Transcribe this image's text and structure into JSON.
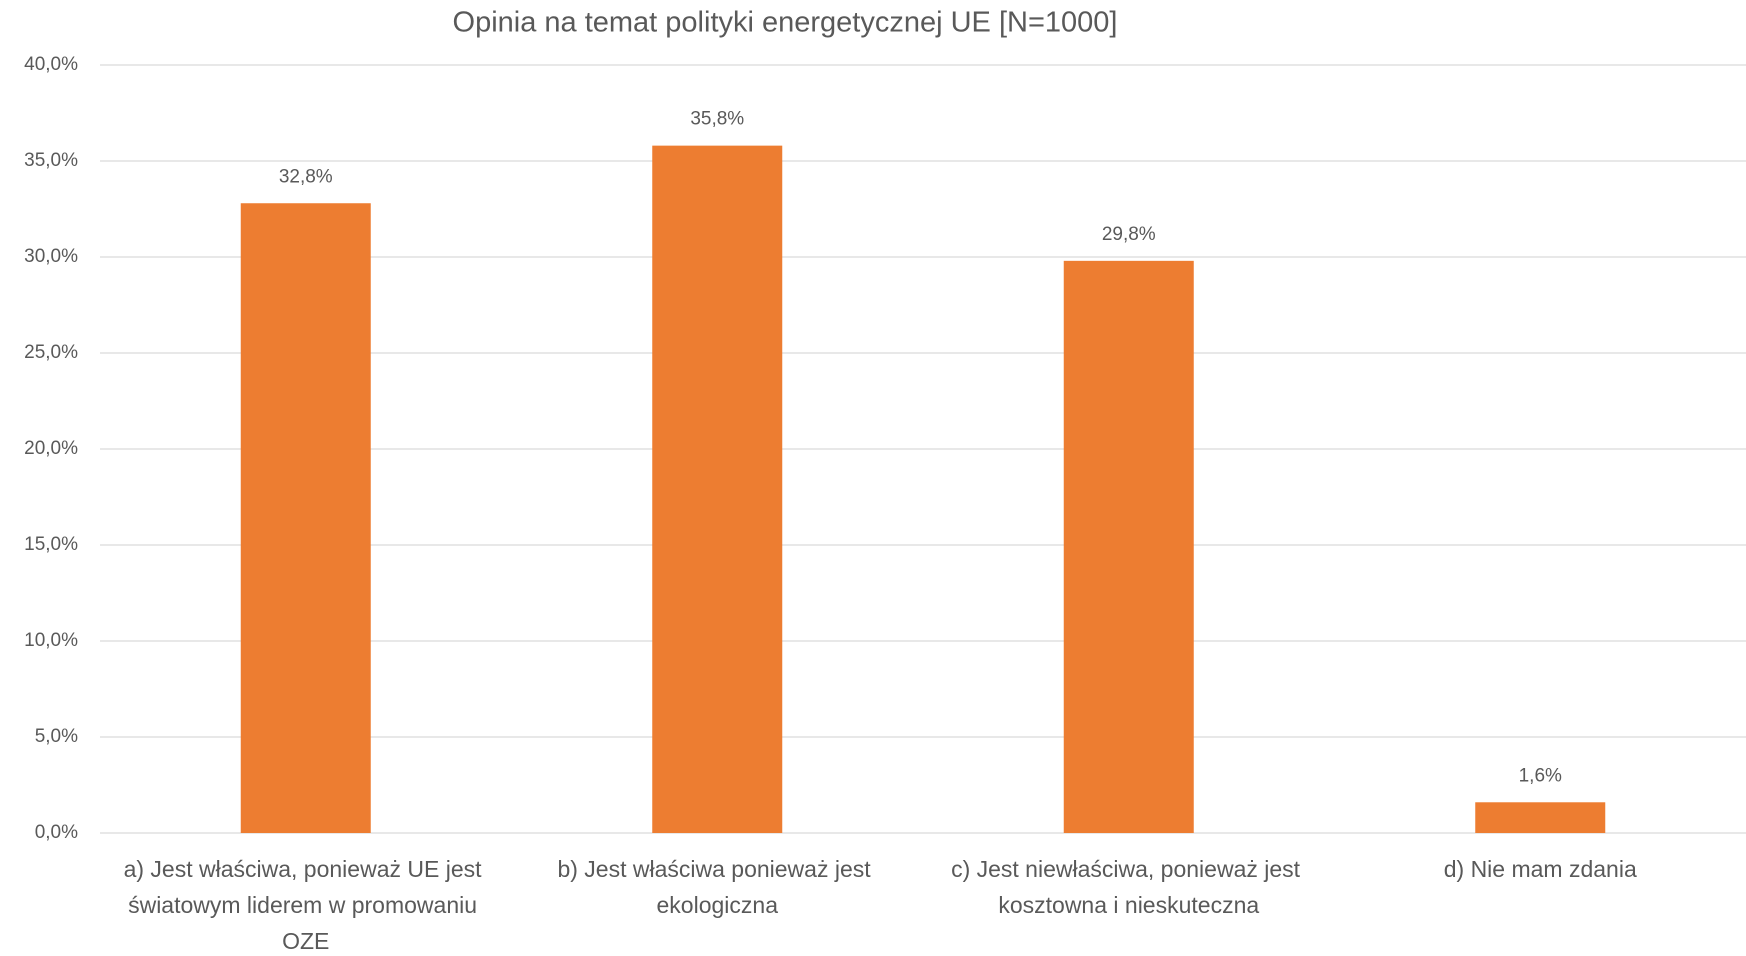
{
  "chart_data": {
    "type": "bar",
    "title": "Opinia na temat polityki energetycznej UE [N=1000]",
    "categories": [
      "a) Jest właściwa, ponieważ UE jest światowym liderem w promowaniu OZE",
      "b) Jest właściwa ponieważ jest ekologiczna",
      "c) Jest niewłaściwa, ponieważ jest kosztowna i nieskuteczna",
      "d) Nie mam zdania"
    ],
    "values": [
      32.8,
      35.8,
      29.8,
      1.6
    ],
    "value_labels": [
      "32,8%",
      "35,8%",
      "29,8%",
      "1,6%"
    ],
    "color": "#ed7d31",
    "ylim": [
      0,
      40
    ],
    "yticks": [
      {
        "value": 0,
        "label": "0,0%"
      },
      {
        "value": 5,
        "label": "5,0%"
      },
      {
        "value": 10,
        "label": "10,0%"
      },
      {
        "value": 15,
        "label": "15,0%"
      },
      {
        "value": 20,
        "label": "20,0%"
      },
      {
        "value": 25,
        "label": "25,0%"
      },
      {
        "value": 30,
        "label": "30,0%"
      },
      {
        "value": 35,
        "label": "35,0%"
      },
      {
        "value": 40,
        "label": "40,0%"
      }
    ],
    "grid": true
  }
}
